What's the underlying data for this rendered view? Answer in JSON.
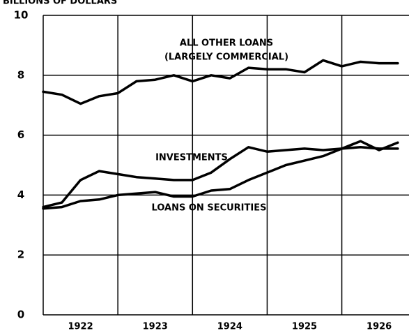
{
  "chart_data": {
    "type": "line",
    "title": "BILLIONS OF DOLLARS",
    "x": [
      1922.0,
      1922.25,
      1922.5,
      1922.75,
      1923.0,
      1923.25,
      1923.5,
      1923.75,
      1924.0,
      1924.25,
      1924.5,
      1924.75,
      1925.0,
      1925.25,
      1925.5,
      1925.75,
      1926.0,
      1926.25,
      1926.5,
      1926.75
    ],
    "series": [
      {
        "name": "ALL OTHER LOANS",
        "note": "(LARGELY COMMERCIAL)",
        "color": "#000000",
        "values": [
          7.45,
          7.35,
          7.05,
          7.3,
          7.4,
          7.8,
          7.85,
          8.0,
          7.8,
          8.0,
          7.9,
          8.25,
          8.2,
          8.2,
          8.1,
          8.5,
          8.3,
          8.45,
          8.4,
          8.4
        ]
      },
      {
        "name": "INVESTMENTS",
        "color": "#000000",
        "values": [
          3.6,
          3.75,
          4.5,
          4.8,
          4.7,
          4.6,
          4.55,
          4.5,
          4.5,
          4.75,
          5.2,
          5.6,
          5.45,
          5.5,
          5.55,
          5.5,
          5.55,
          5.6,
          5.55,
          5.55
        ]
      },
      {
        "name": "LOANS ON SECURITIES",
        "color": "#000000",
        "values": [
          3.55,
          3.6,
          3.8,
          3.85,
          4.0,
          4.05,
          4.1,
          3.95,
          3.95,
          4.15,
          4.2,
          4.5,
          4.75,
          5.0,
          5.15,
          5.3,
          5.55,
          5.8,
          5.5,
          5.75
        ]
      }
    ],
    "xlim": [
      1922,
      1926.9
    ],
    "xticks": [
      {
        "value": 1922.5,
        "label": "1922"
      },
      {
        "value": 1923.5,
        "label": "1923"
      },
      {
        "value": 1924.5,
        "label": "1924"
      },
      {
        "value": 1925.5,
        "label": "1925"
      },
      {
        "value": 1926.5,
        "label": "1926"
      }
    ],
    "x_gridlines": [
      1922,
      1923,
      1924,
      1925,
      1926
    ],
    "ylim": [
      0,
      10
    ],
    "yticks": [
      0,
      2,
      4,
      6,
      8,
      10
    ],
    "grid": true
  }
}
